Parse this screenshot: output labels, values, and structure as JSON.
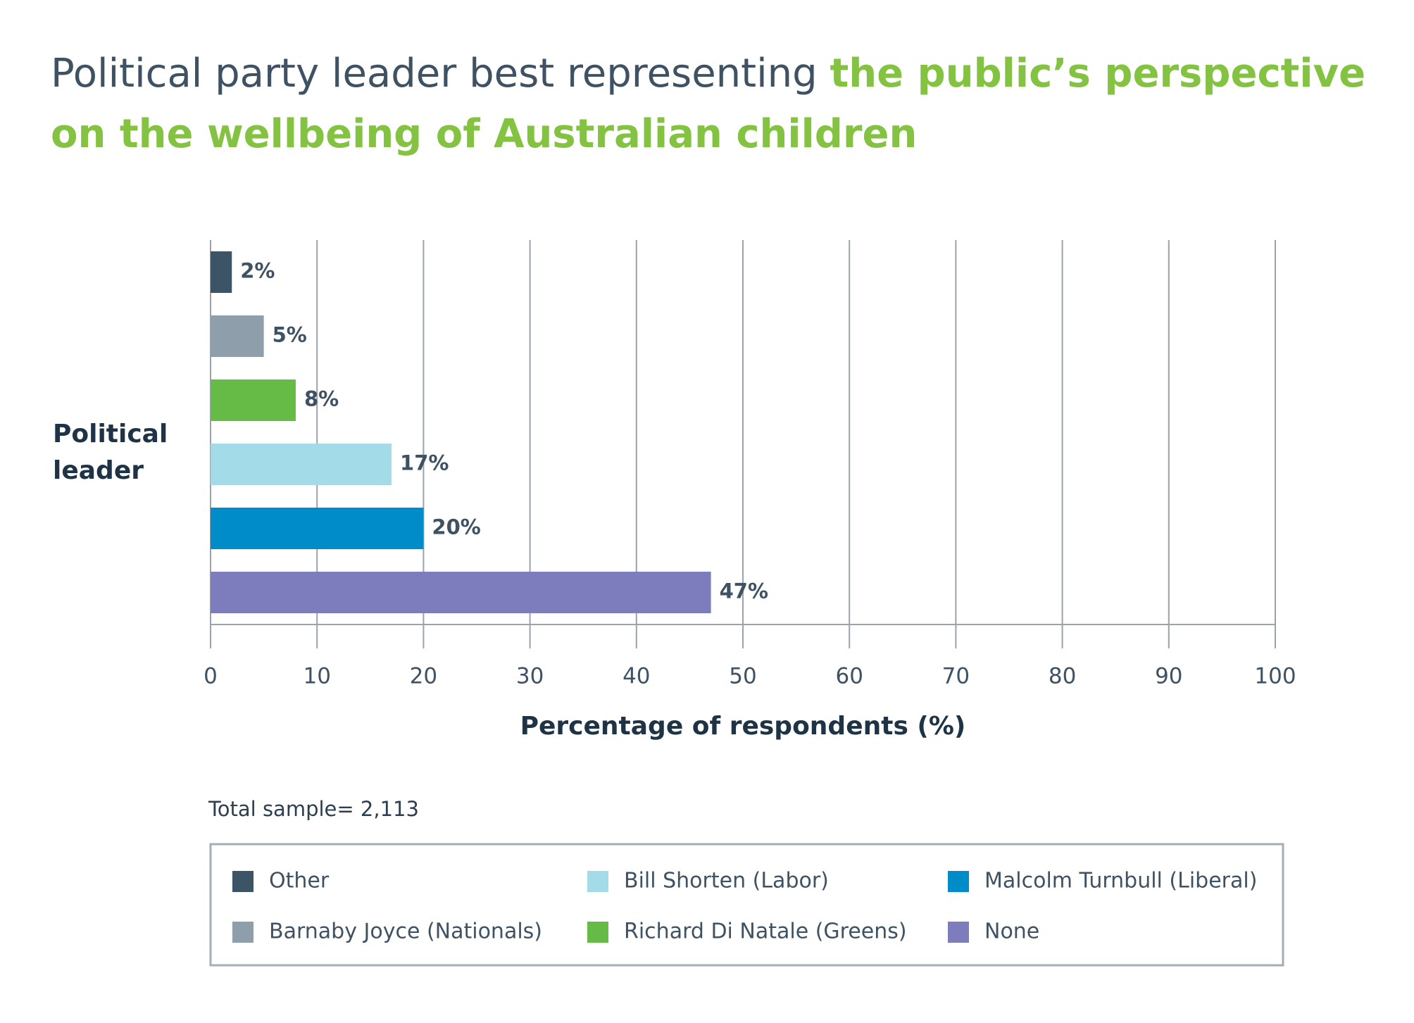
{
  "chart_data": {
    "type": "bar",
    "orientation": "horizontal",
    "title": "Political party leader best representing",
    "title_highlight": "the public’s perspective on the wellbeing of Australian children",
    "y_label": "Political leader",
    "x_label": "Percentage of respondents (%)",
    "note": "Total sample= 2,113",
    "series": [
      {
        "name": "Other",
        "color": "#3d5366",
        "values": [
          2
        ],
        "value_labels": [
          "2%"
        ]
      },
      {
        "name": "Barnaby Joyce (Nationals)",
        "color": "#8e9fab",
        "values": [
          5
        ],
        "value_labels": [
          "5%"
        ]
      },
      {
        "name": "Richard Di Natale (Greens)",
        "color": "#65bb46",
        "values": [
          8
        ],
        "value_labels": [
          "8%"
        ]
      },
      {
        "name": "Bill Shorten (Labor)",
        "color": "#a3dbe8",
        "values": [
          17
        ],
        "value_labels": [
          "17%"
        ]
      },
      {
        "name": "Malcolm Turnbull (Liberal)",
        "color": "#008bc9",
        "values": [
          20
        ],
        "value_labels": [
          "20%"
        ]
      },
      {
        "name": "None",
        "color": "#7d7dbd",
        "values": [
          47
        ],
        "value_labels": [
          "47%"
        ]
      }
    ],
    "xlim": [
      0,
      100
    ],
    "xticks": [
      0,
      10,
      20,
      30,
      40,
      50,
      60,
      70,
      80,
      90,
      100
    ],
    "grid": true
  }
}
